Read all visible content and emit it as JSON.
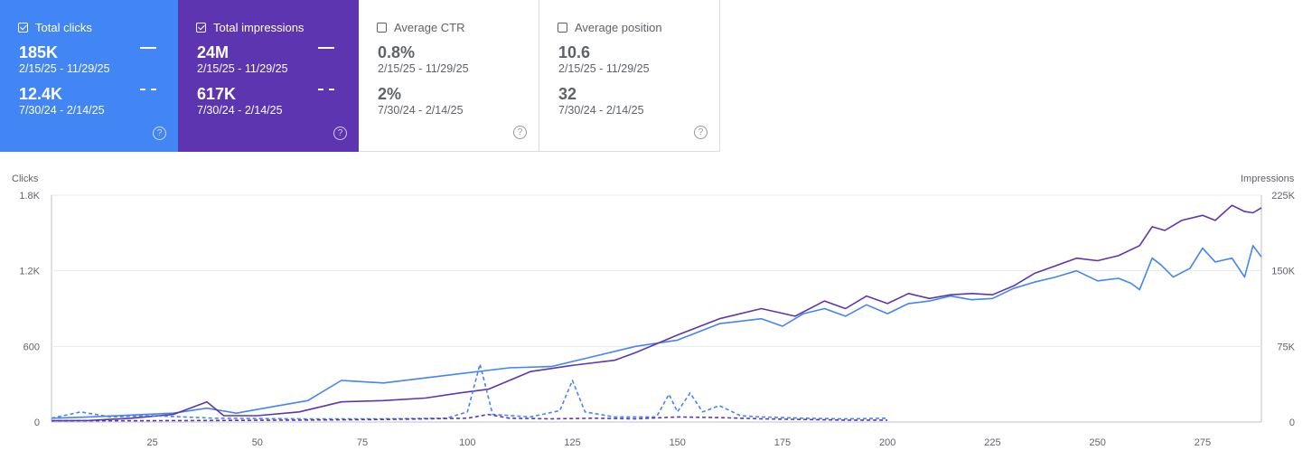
{
  "cards": [
    {
      "label": "Total clicks",
      "checked": true,
      "theme": "blue",
      "current": {
        "value": "185K",
        "range": "2/15/25 - 11/29/25"
      },
      "previous": {
        "value": "12.4K",
        "range": "7/30/24 - 2/14/25"
      },
      "help": "?"
    },
    {
      "label": "Total impressions",
      "checked": true,
      "theme": "purple",
      "current": {
        "value": "24M",
        "range": "2/15/25 - 11/29/25"
      },
      "previous": {
        "value": "617K",
        "range": "7/30/24 - 2/14/25"
      },
      "help": "?"
    },
    {
      "label": "Average CTR",
      "checked": false,
      "theme": "off",
      "current": {
        "value": "0.8%",
        "range": "2/15/25 - 11/29/25"
      },
      "previous": {
        "value": "2%",
        "range": "7/30/24 - 2/14/25"
      },
      "help": "?"
    },
    {
      "label": "Average position",
      "checked": false,
      "theme": "off",
      "current": {
        "value": "10.6",
        "range": "2/15/25 - 11/29/25"
      },
      "previous": {
        "value": "32",
        "range": "7/30/24 - 2/14/25"
      },
      "help": "?"
    }
  ],
  "colors": {
    "clicks": "#4285f4",
    "impressions": "#5e35b1",
    "grid": "#e8eaed",
    "axis": "#5f6368"
  },
  "chart_data": {
    "type": "line",
    "ylabel_left": "Clicks",
    "ylabel_right": "Impressions",
    "left_ticks": [
      "0",
      "600",
      "1.2K",
      "1.8K"
    ],
    "left_ylim": [
      0,
      1800
    ],
    "right_ticks": [
      "0",
      "75K",
      "150K",
      "225K"
    ],
    "right_ylim": [
      0,
      225000
    ],
    "x_ticks": [
      25,
      50,
      75,
      100,
      125,
      150,
      175,
      200,
      225,
      250,
      275
    ],
    "xlim": [
      1,
      289
    ],
    "grid": true,
    "series": [
      {
        "key": "clicks_current",
        "axis": "left",
        "style": "solid",
        "points": [
          [
            1,
            30
          ],
          [
            10,
            40
          ],
          [
            20,
            55
          ],
          [
            30,
            70
          ],
          [
            38,
            110
          ],
          [
            45,
            70
          ],
          [
            55,
            130
          ],
          [
            62,
            170
          ],
          [
            70,
            330
          ],
          [
            80,
            310
          ],
          [
            90,
            350
          ],
          [
            100,
            390
          ],
          [
            110,
            430
          ],
          [
            120,
            440
          ],
          [
            130,
            520
          ],
          [
            140,
            600
          ],
          [
            150,
            650
          ],
          [
            160,
            780
          ],
          [
            170,
            820
          ],
          [
            175,
            760
          ],
          [
            180,
            860
          ],
          [
            185,
            900
          ],
          [
            190,
            840
          ],
          [
            195,
            930
          ],
          [
            200,
            860
          ],
          [
            205,
            940
          ],
          [
            210,
            960
          ],
          [
            215,
            1000
          ],
          [
            220,
            970
          ],
          [
            225,
            980
          ],
          [
            230,
            1060
          ],
          [
            235,
            1110
          ],
          [
            240,
            1150
          ],
          [
            245,
            1200
          ],
          [
            250,
            1120
          ],
          [
            255,
            1140
          ],
          [
            258,
            1100
          ],
          [
            260,
            1050
          ],
          [
            263,
            1300
          ],
          [
            265,
            1250
          ],
          [
            268,
            1150
          ],
          [
            272,
            1220
          ],
          [
            275,
            1380
          ],
          [
            278,
            1270
          ],
          [
            282,
            1300
          ],
          [
            285,
            1150
          ],
          [
            287,
            1400
          ],
          [
            289,
            1310
          ]
        ]
      },
      {
        "key": "impressions_current",
        "axis": "right",
        "style": "solid",
        "points": [
          [
            1,
            1250
          ],
          [
            10,
            1500
          ],
          [
            20,
            3750
          ],
          [
            30,
            7500
          ],
          [
            38,
            20000
          ],
          [
            42,
            6250
          ],
          [
            50,
            6250
          ],
          [
            60,
            10000
          ],
          [
            70,
            20000
          ],
          [
            80,
            21250
          ],
          [
            90,
            23750
          ],
          [
            98,
            28750
          ],
          [
            105,
            32500
          ],
          [
            115,
            50000
          ],
          [
            125,
            56250
          ],
          [
            135,
            61250
          ],
          [
            140,
            68750
          ],
          [
            150,
            86250
          ],
          [
            160,
            102500
          ],
          [
            170,
            112500
          ],
          [
            178,
            105000
          ],
          [
            185,
            120000
          ],
          [
            190,
            112500
          ],
          [
            195,
            125000
          ],
          [
            200,
            117500
          ],
          [
            205,
            127500
          ],
          [
            210,
            122500
          ],
          [
            215,
            126250
          ],
          [
            220,
            127500
          ],
          [
            225,
            126250
          ],
          [
            230,
            135000
          ],
          [
            235,
            147500
          ],
          [
            240,
            155000
          ],
          [
            245,
            162500
          ],
          [
            250,
            160000
          ],
          [
            255,
            165000
          ],
          [
            260,
            175000
          ],
          [
            263,
            193750
          ],
          [
            266,
            190000
          ],
          [
            270,
            200000
          ],
          [
            275,
            205000
          ],
          [
            278,
            200000
          ],
          [
            282,
            215000
          ],
          [
            285,
            208750
          ],
          [
            287,
            207500
          ],
          [
            289,
            212500
          ]
        ]
      },
      {
        "key": "clicks_previous",
        "axis": "left",
        "style": "dashed",
        "points": [
          [
            1,
            30
          ],
          [
            8,
            80
          ],
          [
            15,
            40
          ],
          [
            25,
            50
          ],
          [
            40,
            30
          ],
          [
            60,
            25
          ],
          [
            80,
            25
          ],
          [
            95,
            30
          ],
          [
            100,
            80
          ],
          [
            103,
            460
          ],
          [
            106,
            60
          ],
          [
            115,
            40
          ],
          [
            122,
            90
          ],
          [
            125,
            330
          ],
          [
            128,
            80
          ],
          [
            135,
            40
          ],
          [
            145,
            40
          ],
          [
            148,
            220
          ],
          [
            150,
            80
          ],
          [
            153,
            230
          ],
          [
            156,
            80
          ],
          [
            160,
            130
          ],
          [
            165,
            50
          ],
          [
            170,
            40
          ],
          [
            180,
            30
          ],
          [
            190,
            25
          ],
          [
            200,
            30
          ]
        ]
      },
      {
        "key": "impressions_previous",
        "axis": "right",
        "style": "dashed",
        "points": [
          [
            1,
            1250
          ],
          [
            20,
            1250
          ],
          [
            40,
            1500
          ],
          [
            60,
            1875
          ],
          [
            80,
            2500
          ],
          [
            100,
            3750
          ],
          [
            105,
            7500
          ],
          [
            110,
            3750
          ],
          [
            120,
            3125
          ],
          [
            130,
            3750
          ],
          [
            140,
            3125
          ],
          [
            150,
            5000
          ],
          [
            160,
            4375
          ],
          [
            170,
            3125
          ],
          [
            180,
            2500
          ],
          [
            190,
            1875
          ],
          [
            200,
            1875
          ]
        ]
      }
    ]
  }
}
